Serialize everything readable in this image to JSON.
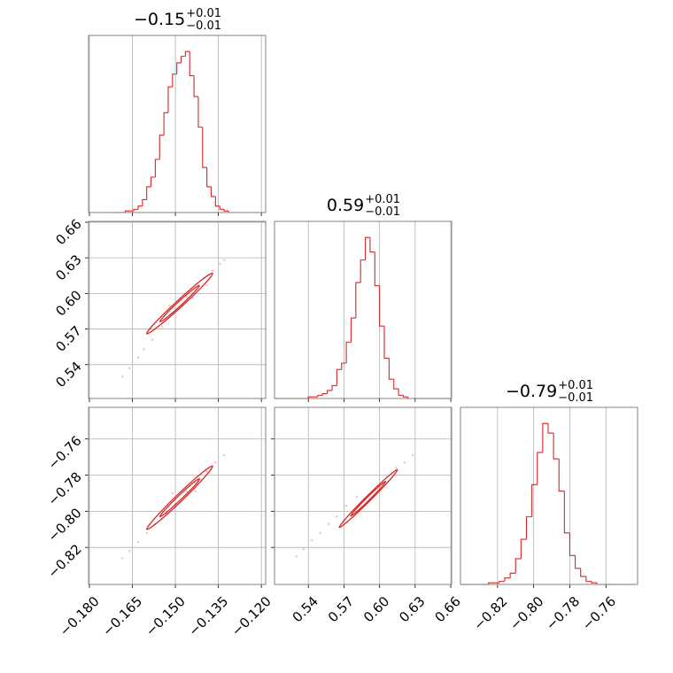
{
  "chart_data": {
    "type": "corner",
    "color": "#d62728",
    "grid": true,
    "parameters": [
      {
        "title": "−0.15",
        "title_plus": "+0.01",
        "title_minus": "−0.01",
        "lim": [
          -0.1803,
          -0.1185
        ],
        "ticks": [
          {
            "value": -0.18,
            "label": "−0.180"
          },
          {
            "value": -0.165,
            "label": "−0.165"
          },
          {
            "value": -0.15,
            "label": "−0.150"
          },
          {
            "value": -0.135,
            "label": "−0.135"
          },
          {
            "value": -0.12,
            "label": "−0.120"
          }
        ],
        "ylim": [
          0,
          110
        ],
        "bins": [
          -0.172,
          -0.1705,
          -0.169,
          -0.1675,
          -0.166,
          -0.1645,
          -0.163,
          -0.1615,
          -0.16,
          -0.1585,
          -0.157,
          -0.1555,
          -0.154,
          -0.1525,
          -0.151,
          -0.1495,
          -0.148,
          -0.1465,
          -0.145,
          -0.1435,
          -0.142,
          -0.1405,
          -0.139,
          -0.1375,
          -0.136,
          -0.1345,
          -0.133,
          -0.1315,
          -0.13
        ],
        "counts": [
          0,
          0,
          0,
          1,
          1,
          2,
          4,
          8,
          16,
          22,
          33,
          48,
          62,
          78,
          86,
          93,
          97,
          100,
          85,
          72,
          53,
          28,
          16,
          10,
          4,
          2,
          1,
          0
        ]
      },
      {
        "title": "0.59",
        "title_plus": "+0.01",
        "title_minus": "−0.01",
        "lim": [
          0.5115,
          0.6607
        ],
        "ticks": [
          0.54,
          0.57,
          {
            "value": 0.6,
            "label": "0.60"
          },
          0.63,
          0.66
        ],
        "ylim": [
          0,
          110
        ],
        "bins": [
          0.512,
          0.516,
          0.52,
          0.524,
          0.528,
          0.532,
          0.536,
          0.54,
          0.544,
          0.548,
          0.552,
          0.556,
          0.56,
          0.564,
          0.568,
          0.572,
          0.576,
          0.58,
          0.584,
          0.588,
          0.592,
          0.596,
          0.6,
          0.604,
          0.608,
          0.612,
          0.616,
          0.62,
          0.624,
          0.628,
          0.632,
          0.636,
          0.64,
          0.644,
          0.648,
          0.652,
          0.656,
          0.66
        ],
        "counts": [
          0,
          0,
          0,
          0,
          0,
          0,
          0,
          1,
          1,
          2,
          3,
          5,
          8,
          18,
          22,
          35,
          50,
          72,
          86,
          100,
          91,
          70,
          45,
          25,
          12,
          6,
          2,
          1,
          0,
          0,
          0,
          0,
          0,
          0,
          0,
          0,
          0
        ]
      },
      {
        "title": "−0.79",
        "title_plus": "+0.01",
        "title_minus": "−0.01",
        "lim": [
          -0.8405,
          -0.7425
        ],
        "ticks": [
          {
            "value": -0.82,
            "label": "−0.82"
          },
          {
            "value": -0.8,
            "label": "−0.80"
          },
          {
            "value": -0.78,
            "label": "−0.78"
          },
          {
            "value": -0.76,
            "label": "−0.76"
          }
        ],
        "ylim": [
          0,
          110
        ],
        "bins": [
          -0.84,
          -0.837,
          -0.834,
          -0.831,
          -0.828,
          -0.825,
          -0.822,
          -0.819,
          -0.816,
          -0.813,
          -0.81,
          -0.807,
          -0.804,
          -0.801,
          -0.798,
          -0.795,
          -0.792,
          -0.789,
          -0.786,
          -0.783,
          -0.78,
          -0.777,
          -0.774,
          -0.771,
          -0.768,
          -0.765,
          -0.762,
          -0.759,
          -0.756,
          -0.753,
          -0.75,
          -0.747,
          -0.744
        ],
        "counts": [
          0,
          0,
          0,
          0,
          0,
          1,
          1,
          2,
          4,
          7,
          16,
          28,
          42,
          62,
          82,
          100,
          94,
          78,
          58,
          32,
          18,
          10,
          5,
          2,
          1,
          0,
          0,
          0,
          0,
          0,
          0,
          0
        ]
      }
    ],
    "pairs": [
      {
        "x_param": 0,
        "y_param": 1,
        "points": {
          "x": [
            -0.1685,
            -0.166,
            -0.163,
            -0.161,
            -0.158,
            -0.1545,
            -0.151,
            -0.146,
            -0.143,
            -0.14,
            -0.137,
            -0.1345,
            -0.133,
            -0.152,
            -0.144,
            -0.139
          ],
          "y": [
            0.53,
            0.537,
            0.546,
            0.553,
            0.561,
            0.572,
            0.583,
            0.597,
            0.604,
            0.613,
            0.619,
            0.625,
            0.628,
            0.59,
            0.596,
            0.607
          ]
        },
        "contours": [
          {
            "x": [
              -0.137,
              -0.1398,
              -0.1477,
              -0.1561,
              -0.16,
              -0.1572,
              -0.1493,
              -0.141
            ],
            "y": [
              0.617,
              0.608,
              0.5893,
              0.5719,
              0.566,
              0.575,
              0.5937,
              0.6111
            ]
          },
          {
            "x": [
              -0.1416,
              -0.1433,
              -0.148,
              -0.153,
              -0.1554,
              -0.1537,
              -0.149,
              -0.144
            ],
            "y": [
              0.6068,
              0.6014,
              0.5902,
              0.5797,
              0.5762,
              0.5816,
              0.5928,
              0.6032
            ]
          }
        ]
      },
      {
        "x_param": 0,
        "y_param": 2,
        "points": {
          "x": [
            -0.1685,
            -0.166,
            -0.163,
            -0.16,
            -0.157,
            -0.153,
            -0.15,
            -0.146,
            -0.142,
            -0.139,
            -0.136,
            -0.133,
            -0.151,
            -0.143
          ],
          "y": [
            -0.826,
            -0.822,
            -0.817,
            -0.812,
            -0.807,
            -0.801,
            -0.796,
            -0.789,
            -0.783,
            -0.778,
            -0.773,
            -0.769,
            -0.79,
            -0.789
          ]
        },
        "contours": [
          {
            "x": [
              -0.137,
              -0.1398,
              -0.1476,
              -0.156,
              -0.16,
              -0.1572,
              -0.1494,
              -0.141
            ],
            "y": [
              -0.775,
              -0.7811,
              -0.7939,
              -0.8059,
              -0.81,
              -0.8039,
              -0.7911,
              -0.7791
            ]
          },
          {
            "x": [
              -0.1416,
              -0.1432,
              -0.148,
              -0.153,
              -0.1554,
              -0.1537,
              -0.149,
              -0.144
            ],
            "y": [
              -0.782,
              -0.7857,
              -0.7933,
              -0.8005,
              -0.803,
              -0.7993,
              -0.7917,
              -0.7845
            ]
          }
        ]
      },
      {
        "x_param": 1,
        "y_param": 2,
        "points": {
          "x": [
            0.53,
            0.536,
            0.543,
            0.55,
            0.557,
            0.564,
            0.572,
            0.581,
            0.598,
            0.606,
            0.614,
            0.621,
            0.628,
            0.6
          ],
          "y": [
            -0.825,
            -0.821,
            -0.816,
            -0.812,
            -0.807,
            -0.803,
            -0.797,
            -0.792,
            -0.786,
            -0.781,
            -0.776,
            -0.773,
            -0.769,
            -0.788
          ]
        },
        "contours": [
          {
            "x": [
              0.615,
              0.609,
              0.5921,
              0.5743,
              0.566,
              0.5721,
              0.5889,
              0.6067
            ],
            "y": [
              -0.777,
              -0.7824,
              -0.794,
              -0.805,
              -0.809,
              -0.8036,
              -0.792,
              -0.781
            ]
          },
          {
            "x": [
              0.6052,
              0.6016,
              0.5915,
              0.5808,
              0.5758,
              0.5794,
              0.5895,
              0.6002
            ],
            "y": [
              -0.7834,
              -0.7866,
              -0.7936,
              -0.8002,
              -0.8026,
              -0.7994,
              -0.7924,
              -0.7858
            ]
          }
        ]
      }
    ]
  }
}
